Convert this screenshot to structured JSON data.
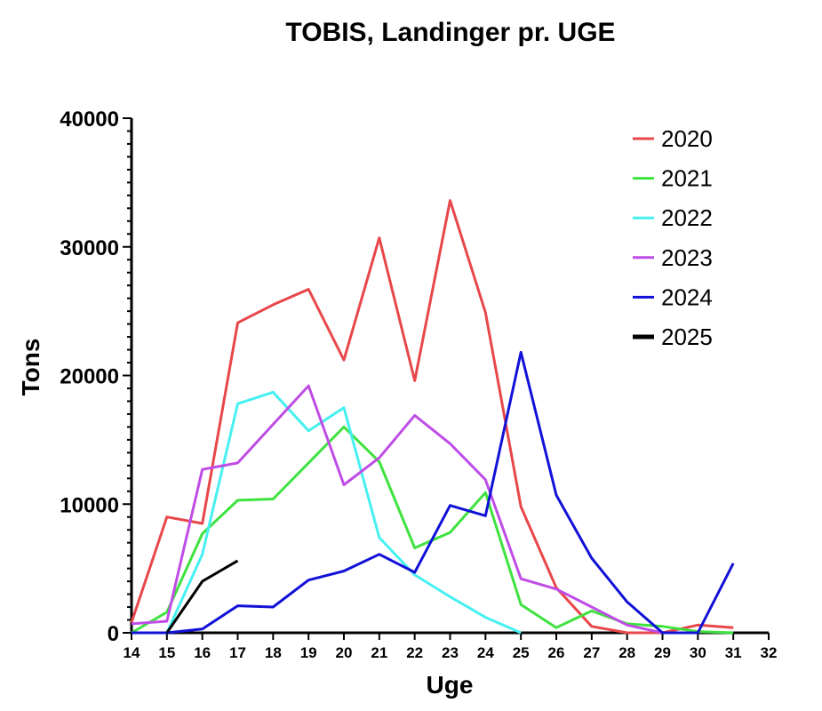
{
  "chart_data": {
    "type": "line",
    "title": "TOBIS, Landinger pr. UGE",
    "xlabel": "Uge",
    "ylabel": "Tons",
    "xlim": [
      14,
      32
    ],
    "ylim": [
      0,
      40000
    ],
    "x_ticks": [
      14,
      15,
      16,
      17,
      18,
      19,
      20,
      21,
      22,
      23,
      24,
      25,
      26,
      27,
      28,
      29,
      30,
      31,
      32
    ],
    "y_ticks": [
      0,
      10000,
      20000,
      30000,
      40000
    ],
    "y_minor_step": 1000,
    "grid": false,
    "legend_position": "top-right",
    "series": [
      {
        "name": "2020",
        "color": "#e8474a",
        "x": [
          14,
          15,
          16,
          17,
          18,
          19,
          20,
          21,
          22,
          23,
          24,
          25,
          26,
          27,
          28,
          29,
          30,
          31
        ],
        "values": [
          800,
          9000,
          8500,
          24100,
          25500,
          26700,
          21200,
          30700,
          19600,
          33600,
          24900,
          9800,
          3500,
          500,
          0,
          0,
          600,
          400
        ]
      },
      {
        "name": "2021",
        "color": "#3fe23f",
        "x": [
          14,
          15,
          16,
          17,
          18,
          19,
          20,
          21,
          22,
          23,
          24,
          25,
          26,
          27,
          28,
          29,
          30,
          31
        ],
        "values": [
          0,
          1600,
          7700,
          10300,
          10400,
          13200,
          16000,
          13300,
          6600,
          7800,
          10900,
          2200,
          400,
          1700,
          700,
          500,
          100,
          0
        ]
      },
      {
        "name": "2022",
        "color": "#47f0f0",
        "x": [
          14,
          15,
          16,
          17,
          18,
          19,
          20,
          21,
          22,
          23,
          24,
          25
        ],
        "values": [
          0,
          0,
          6100,
          17800,
          18700,
          15700,
          17500,
          7400,
          4500,
          2800,
          1200,
          0
        ]
      },
      {
        "name": "2023",
        "color": "#bf4de6",
        "x": [
          14,
          15,
          16,
          17,
          18,
          19,
          20,
          21,
          22,
          23,
          24,
          25,
          26,
          27,
          28,
          29,
          30
        ],
        "values": [
          700,
          900,
          12700,
          13200,
          16200,
          19200,
          11500,
          13600,
          16900,
          14700,
          11900,
          4200,
          3400,
          2000,
          600,
          0,
          0
        ]
      },
      {
        "name": "2024",
        "color": "#1111d8",
        "x": [
          14,
          15,
          16,
          17,
          18,
          19,
          20,
          21,
          22,
          23,
          24,
          25,
          26,
          27,
          28,
          29,
          30,
          31
        ],
        "values": [
          0,
          0,
          300,
          2100,
          2000,
          4100,
          4800,
          6100,
          4700,
          9900,
          9100,
          21800,
          10700,
          5800,
          2400,
          0,
          0,
          5400
        ]
      },
      {
        "name": "2025",
        "color": "#000000",
        "x": [
          15,
          16,
          17
        ],
        "values": [
          0,
          4000,
          5600
        ]
      }
    ]
  }
}
